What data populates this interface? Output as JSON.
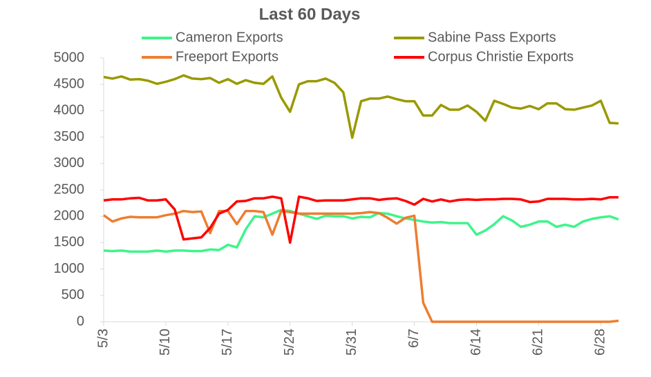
{
  "chart_data": {
    "type": "line",
    "title": "Last 60 Days",
    "categories": [
      "5/3",
      null,
      null,
      null,
      null,
      null,
      null,
      "5/10",
      null,
      null,
      null,
      null,
      null,
      null,
      "5/17",
      null,
      null,
      null,
      null,
      null,
      null,
      "5/24",
      null,
      null,
      null,
      null,
      null,
      null,
      "5/31",
      null,
      null,
      null,
      null,
      null,
      null,
      "6/7",
      null,
      null,
      null,
      null,
      null,
      null,
      "6/14",
      null,
      null,
      null,
      null,
      null,
      null,
      "6/21",
      null,
      null,
      null,
      null,
      null,
      null,
      "6/28",
      null,
      null
    ],
    "series": [
      {
        "name": "Cameron Exports",
        "color": "#3df58a",
        "values": [
          1350,
          1340,
          1350,
          1330,
          1330,
          1330,
          1350,
          1330,
          1350,
          1350,
          1340,
          1340,
          1370,
          1360,
          1460,
          1410,
          1750,
          2000,
          1980,
          2050,
          2120,
          2100,
          2050,
          2000,
          1950,
          2010,
          2000,
          2000,
          1960,
          1990,
          1980,
          2060,
          2050,
          2000,
          1960,
          1930,
          1900,
          1880,
          1890,
          1870,
          1870,
          1870,
          1650,
          1730,
          1850,
          2000,
          1920,
          1800,
          1840,
          1900,
          1900,
          1800,
          1840,
          1800,
          1900,
          1950,
          1980,
          2000,
          1940
        ]
      },
      {
        "name": "Sabine Pass Exports",
        "color": "#999900",
        "values": [
          4640,
          4610,
          4650,
          4590,
          4600,
          4570,
          4510,
          4550,
          4600,
          4670,
          4610,
          4600,
          4620,
          4530,
          4600,
          4510,
          4580,
          4530,
          4510,
          4650,
          4250,
          3980,
          4500,
          4560,
          4560,
          4610,
          4530,
          4350,
          3490,
          4180,
          4230,
          4230,
          4270,
          4220,
          4180,
          4180,
          3910,
          3910,
          4110,
          4020,
          4020,
          4100,
          3980,
          3810,
          4190,
          4130,
          4060,
          4040,
          4090,
          4030,
          4140,
          4140,
          4030,
          4020,
          4060,
          4100,
          4190,
          3770,
          3760
        ]
      },
      {
        "name": "Freeport Exports",
        "color": "#ed7d31",
        "values": [
          2020,
          1900,
          1960,
          1990,
          1980,
          1980,
          1980,
          2020,
          2050,
          2100,
          2080,
          2090,
          1680,
          2100,
          2100,
          1850,
          2100,
          2100,
          2080,
          1650,
          2100,
          2080,
          2050,
          2050,
          2050,
          2050,
          2050,
          2050,
          2050,
          2060,
          2080,
          2060,
          1970,
          1860,
          1970,
          2010,
          360,
          0,
          0,
          0,
          0,
          0,
          0,
          0,
          0,
          0,
          0,
          0,
          0,
          0,
          0,
          0,
          0,
          0,
          0,
          0,
          0,
          0,
          20
        ]
      },
      {
        "name": "Corpus Christie Exports",
        "color": "#ff0000",
        "values": [
          2300,
          2320,
          2320,
          2340,
          2350,
          2300,
          2300,
          2320,
          2130,
          1560,
          1580,
          1600,
          1780,
          2050,
          2120,
          2280,
          2290,
          2340,
          2340,
          2370,
          2340,
          1500,
          2370,
          2340,
          2290,
          2300,
          2300,
          2300,
          2320,
          2340,
          2340,
          2310,
          2330,
          2340,
          2290,
          2220,
          2330,
          2280,
          2320,
          2280,
          2310,
          2320,
          2310,
          2320,
          2320,
          2330,
          2330,
          2320,
          2270,
          2280,
          2330,
          2330,
          2330,
          2320,
          2320,
          2330,
          2320,
          2360,
          2360
        ]
      }
    ],
    "ylim": [
      0,
      5000
    ],
    "yticks": [
      0,
      500,
      1000,
      1500,
      2000,
      2500,
      3000,
      3500,
      4000,
      4500,
      5000
    ],
    "grid": false
  }
}
